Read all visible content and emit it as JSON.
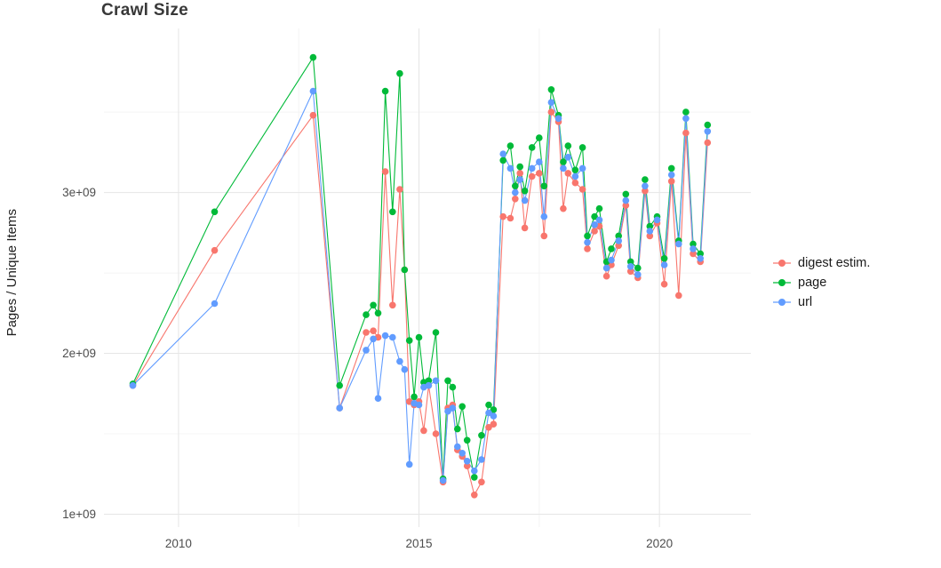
{
  "title": "Crawl Size",
  "axes": {
    "y_label": "Pages / Unique Items",
    "y_ticks": [
      {
        "value_billions": 1,
        "label": "1e+09"
      },
      {
        "value_billions": 2,
        "label": "2e+09"
      },
      {
        "value_billions": 3,
        "label": "3e+09"
      }
    ],
    "x_ticks": [
      {
        "value": 2010,
        "label": "2010"
      },
      {
        "value": 2015,
        "label": "2015"
      },
      {
        "value": 2020,
        "label": "2020"
      }
    ]
  },
  "legend": {
    "items": [
      {
        "label": "digest estim.",
        "color": "#F8766D"
      },
      {
        "label": "page",
        "color": "#00BA38"
      },
      {
        "label": "url",
        "color": "#619CFF"
      }
    ]
  },
  "chart_data": {
    "type": "line",
    "title": "Crawl Size",
    "xlabel": "",
    "ylabel": "Pages / Unique Items",
    "x_unit": "year (decimal)",
    "y_unit": "count (billions, axis shown as 1e+09 / 2e+09 / 3e+09)",
    "xlim": [
      2008.45,
      2021.9
    ],
    "ylim_billions": [
      0.92,
      4.02
    ],
    "x_tick_values": [
      2010,
      2015,
      2020
    ],
    "minor_x_tick_values": [
      2012.5,
      2017.5
    ],
    "y_tick_values_billions": [
      1,
      2,
      3
    ],
    "minor_y_tick_values_billions": [
      1.5,
      2.5,
      3.5
    ],
    "y_tick_labels": [
      "1e+09",
      "2e+09",
      "3e+09"
    ],
    "grid": true,
    "legend_position": "right",
    "marker": "point",
    "series": [
      {
        "name": "digest estim.",
        "color": "#F8766D",
        "points": [
          [
            2009.05,
            1.8
          ],
          [
            2010.75,
            2.64
          ],
          [
            2012.8,
            3.48
          ],
          [
            2013.35,
            1.66
          ],
          [
            2013.9,
            2.13
          ],
          [
            2014.05,
            2.14
          ],
          [
            2014.15,
            2.1
          ],
          [
            2014.3,
            3.13
          ],
          [
            2014.45,
            2.3
          ],
          [
            2014.6,
            3.02
          ],
          [
            2014.7,
            2.52
          ],
          [
            2014.8,
            1.7
          ],
          [
            2014.9,
            1.68
          ],
          [
            2015.0,
            1.7
          ],
          [
            2015.1,
            1.52
          ],
          [
            2015.2,
            1.8
          ],
          [
            2015.35,
            1.5
          ],
          [
            2015.5,
            1.2
          ],
          [
            2015.6,
            1.66
          ],
          [
            2015.7,
            1.68
          ],
          [
            2015.8,
            1.4
          ],
          [
            2015.9,
            1.36
          ],
          [
            2016.0,
            1.3
          ],
          [
            2016.15,
            1.12
          ],
          [
            2016.3,
            1.2
          ],
          [
            2016.45,
            1.54
          ],
          [
            2016.55,
            1.56
          ],
          [
            2016.75,
            2.85
          ],
          [
            2016.9,
            2.84
          ],
          [
            2017.0,
            2.96
          ],
          [
            2017.1,
            3.12
          ],
          [
            2017.2,
            2.78
          ],
          [
            2017.35,
            3.1
          ],
          [
            2017.5,
            3.12
          ],
          [
            2017.6,
            2.73
          ],
          [
            2017.75,
            3.5
          ],
          [
            2017.9,
            3.44
          ],
          [
            2018.0,
            2.9
          ],
          [
            2018.1,
            3.12
          ],
          [
            2018.25,
            3.06
          ],
          [
            2018.4,
            3.02
          ],
          [
            2018.5,
            2.65
          ],
          [
            2018.65,
            2.76
          ],
          [
            2018.75,
            2.79
          ],
          [
            2018.9,
            2.48
          ],
          [
            2019.0,
            2.55
          ],
          [
            2019.15,
            2.67
          ],
          [
            2019.3,
            2.92
          ],
          [
            2019.4,
            2.51
          ],
          [
            2019.55,
            2.47
          ],
          [
            2019.7,
            3.01
          ],
          [
            2019.8,
            2.73
          ],
          [
            2019.95,
            2.81
          ],
          [
            2020.1,
            2.43
          ],
          [
            2020.25,
            3.07
          ],
          [
            2020.4,
            2.36
          ],
          [
            2020.55,
            3.37
          ],
          [
            2020.7,
            2.62
          ],
          [
            2020.85,
            2.57
          ],
          [
            2021.0,
            3.31
          ]
        ]
      },
      {
        "name": "page",
        "color": "#00BA38",
        "points": [
          [
            2009.05,
            1.81
          ],
          [
            2010.75,
            2.88
          ],
          [
            2012.8,
            3.84
          ],
          [
            2013.35,
            1.8
          ],
          [
            2013.9,
            2.24
          ],
          [
            2014.05,
            2.3
          ],
          [
            2014.15,
            2.25
          ],
          [
            2014.3,
            3.63
          ],
          [
            2014.45,
            2.88
          ],
          [
            2014.6,
            3.74
          ],
          [
            2014.7,
            2.52
          ],
          [
            2014.8,
            2.08
          ],
          [
            2014.9,
            1.73
          ],
          [
            2015.0,
            2.1
          ],
          [
            2015.1,
            1.82
          ],
          [
            2015.2,
            1.83
          ],
          [
            2015.35,
            2.13
          ],
          [
            2015.5,
            1.22
          ],
          [
            2015.6,
            1.83
          ],
          [
            2015.7,
            1.79
          ],
          [
            2015.8,
            1.53
          ],
          [
            2015.9,
            1.67
          ],
          [
            2016.0,
            1.46
          ],
          [
            2016.15,
            1.23
          ],
          [
            2016.3,
            1.49
          ],
          [
            2016.45,
            1.68
          ],
          [
            2016.55,
            1.65
          ],
          [
            2016.75,
            3.2
          ],
          [
            2016.9,
            3.29
          ],
          [
            2017.0,
            3.04
          ],
          [
            2017.1,
            3.16
          ],
          [
            2017.2,
            3.01
          ],
          [
            2017.35,
            3.28
          ],
          [
            2017.5,
            3.34
          ],
          [
            2017.6,
            3.04
          ],
          [
            2017.75,
            3.64
          ],
          [
            2017.9,
            3.48
          ],
          [
            2018.0,
            3.19
          ],
          [
            2018.1,
            3.29
          ],
          [
            2018.25,
            3.14
          ],
          [
            2018.4,
            3.28
          ],
          [
            2018.5,
            2.73
          ],
          [
            2018.65,
            2.85
          ],
          [
            2018.75,
            2.9
          ],
          [
            2018.9,
            2.57
          ],
          [
            2019.0,
            2.65
          ],
          [
            2019.15,
            2.73
          ],
          [
            2019.3,
            2.99
          ],
          [
            2019.4,
            2.57
          ],
          [
            2019.55,
            2.53
          ],
          [
            2019.7,
            3.08
          ],
          [
            2019.8,
            2.79
          ],
          [
            2019.95,
            2.85
          ],
          [
            2020.1,
            2.59
          ],
          [
            2020.25,
            3.15
          ],
          [
            2020.4,
            2.7
          ],
          [
            2020.55,
            3.5
          ],
          [
            2020.7,
            2.68
          ],
          [
            2020.85,
            2.62
          ],
          [
            2021.0,
            3.42
          ]
        ]
      },
      {
        "name": "url",
        "color": "#619CFF",
        "points": [
          [
            2009.05,
            1.8
          ],
          [
            2010.75,
            2.31
          ],
          [
            2012.8,
            3.63
          ],
          [
            2013.35,
            1.66
          ],
          [
            2013.9,
            2.02
          ],
          [
            2014.05,
            2.09
          ],
          [
            2014.15,
            1.72
          ],
          [
            2014.3,
            2.11
          ],
          [
            2014.45,
            2.1
          ],
          [
            2014.6,
            1.95
          ],
          [
            2014.7,
            1.9
          ],
          [
            2014.8,
            1.31
          ],
          [
            2014.9,
            1.69
          ],
          [
            2015.0,
            1.68
          ],
          [
            2015.1,
            1.79
          ],
          [
            2015.2,
            1.8
          ],
          [
            2015.35,
            1.83
          ],
          [
            2015.5,
            1.21
          ],
          [
            2015.6,
            1.64
          ],
          [
            2015.7,
            1.66
          ],
          [
            2015.8,
            1.42
          ],
          [
            2015.9,
            1.38
          ],
          [
            2016.0,
            1.33
          ],
          [
            2016.15,
            1.27
          ],
          [
            2016.3,
            1.34
          ],
          [
            2016.45,
            1.63
          ],
          [
            2016.55,
            1.61
          ],
          [
            2016.75,
            3.24
          ],
          [
            2016.9,
            3.15
          ],
          [
            2017.0,
            3.0
          ],
          [
            2017.1,
            3.08
          ],
          [
            2017.2,
            2.95
          ],
          [
            2017.35,
            3.15
          ],
          [
            2017.5,
            3.19
          ],
          [
            2017.6,
            2.85
          ],
          [
            2017.75,
            3.56
          ],
          [
            2017.9,
            3.46
          ],
          [
            2018.0,
            3.15
          ],
          [
            2018.1,
            3.22
          ],
          [
            2018.25,
            3.1
          ],
          [
            2018.4,
            3.15
          ],
          [
            2018.5,
            2.69
          ],
          [
            2018.65,
            2.8
          ],
          [
            2018.75,
            2.83
          ],
          [
            2018.9,
            2.53
          ],
          [
            2019.0,
            2.58
          ],
          [
            2019.15,
            2.7
          ],
          [
            2019.3,
            2.95
          ],
          [
            2019.4,
            2.54
          ],
          [
            2019.55,
            2.49
          ],
          [
            2019.7,
            3.04
          ],
          [
            2019.8,
            2.76
          ],
          [
            2019.95,
            2.83
          ],
          [
            2020.1,
            2.55
          ],
          [
            2020.25,
            3.11
          ],
          [
            2020.4,
            2.68
          ],
          [
            2020.55,
            3.46
          ],
          [
            2020.7,
            2.65
          ],
          [
            2020.85,
            2.59
          ],
          [
            2021.0,
            3.38
          ]
        ]
      }
    ]
  }
}
